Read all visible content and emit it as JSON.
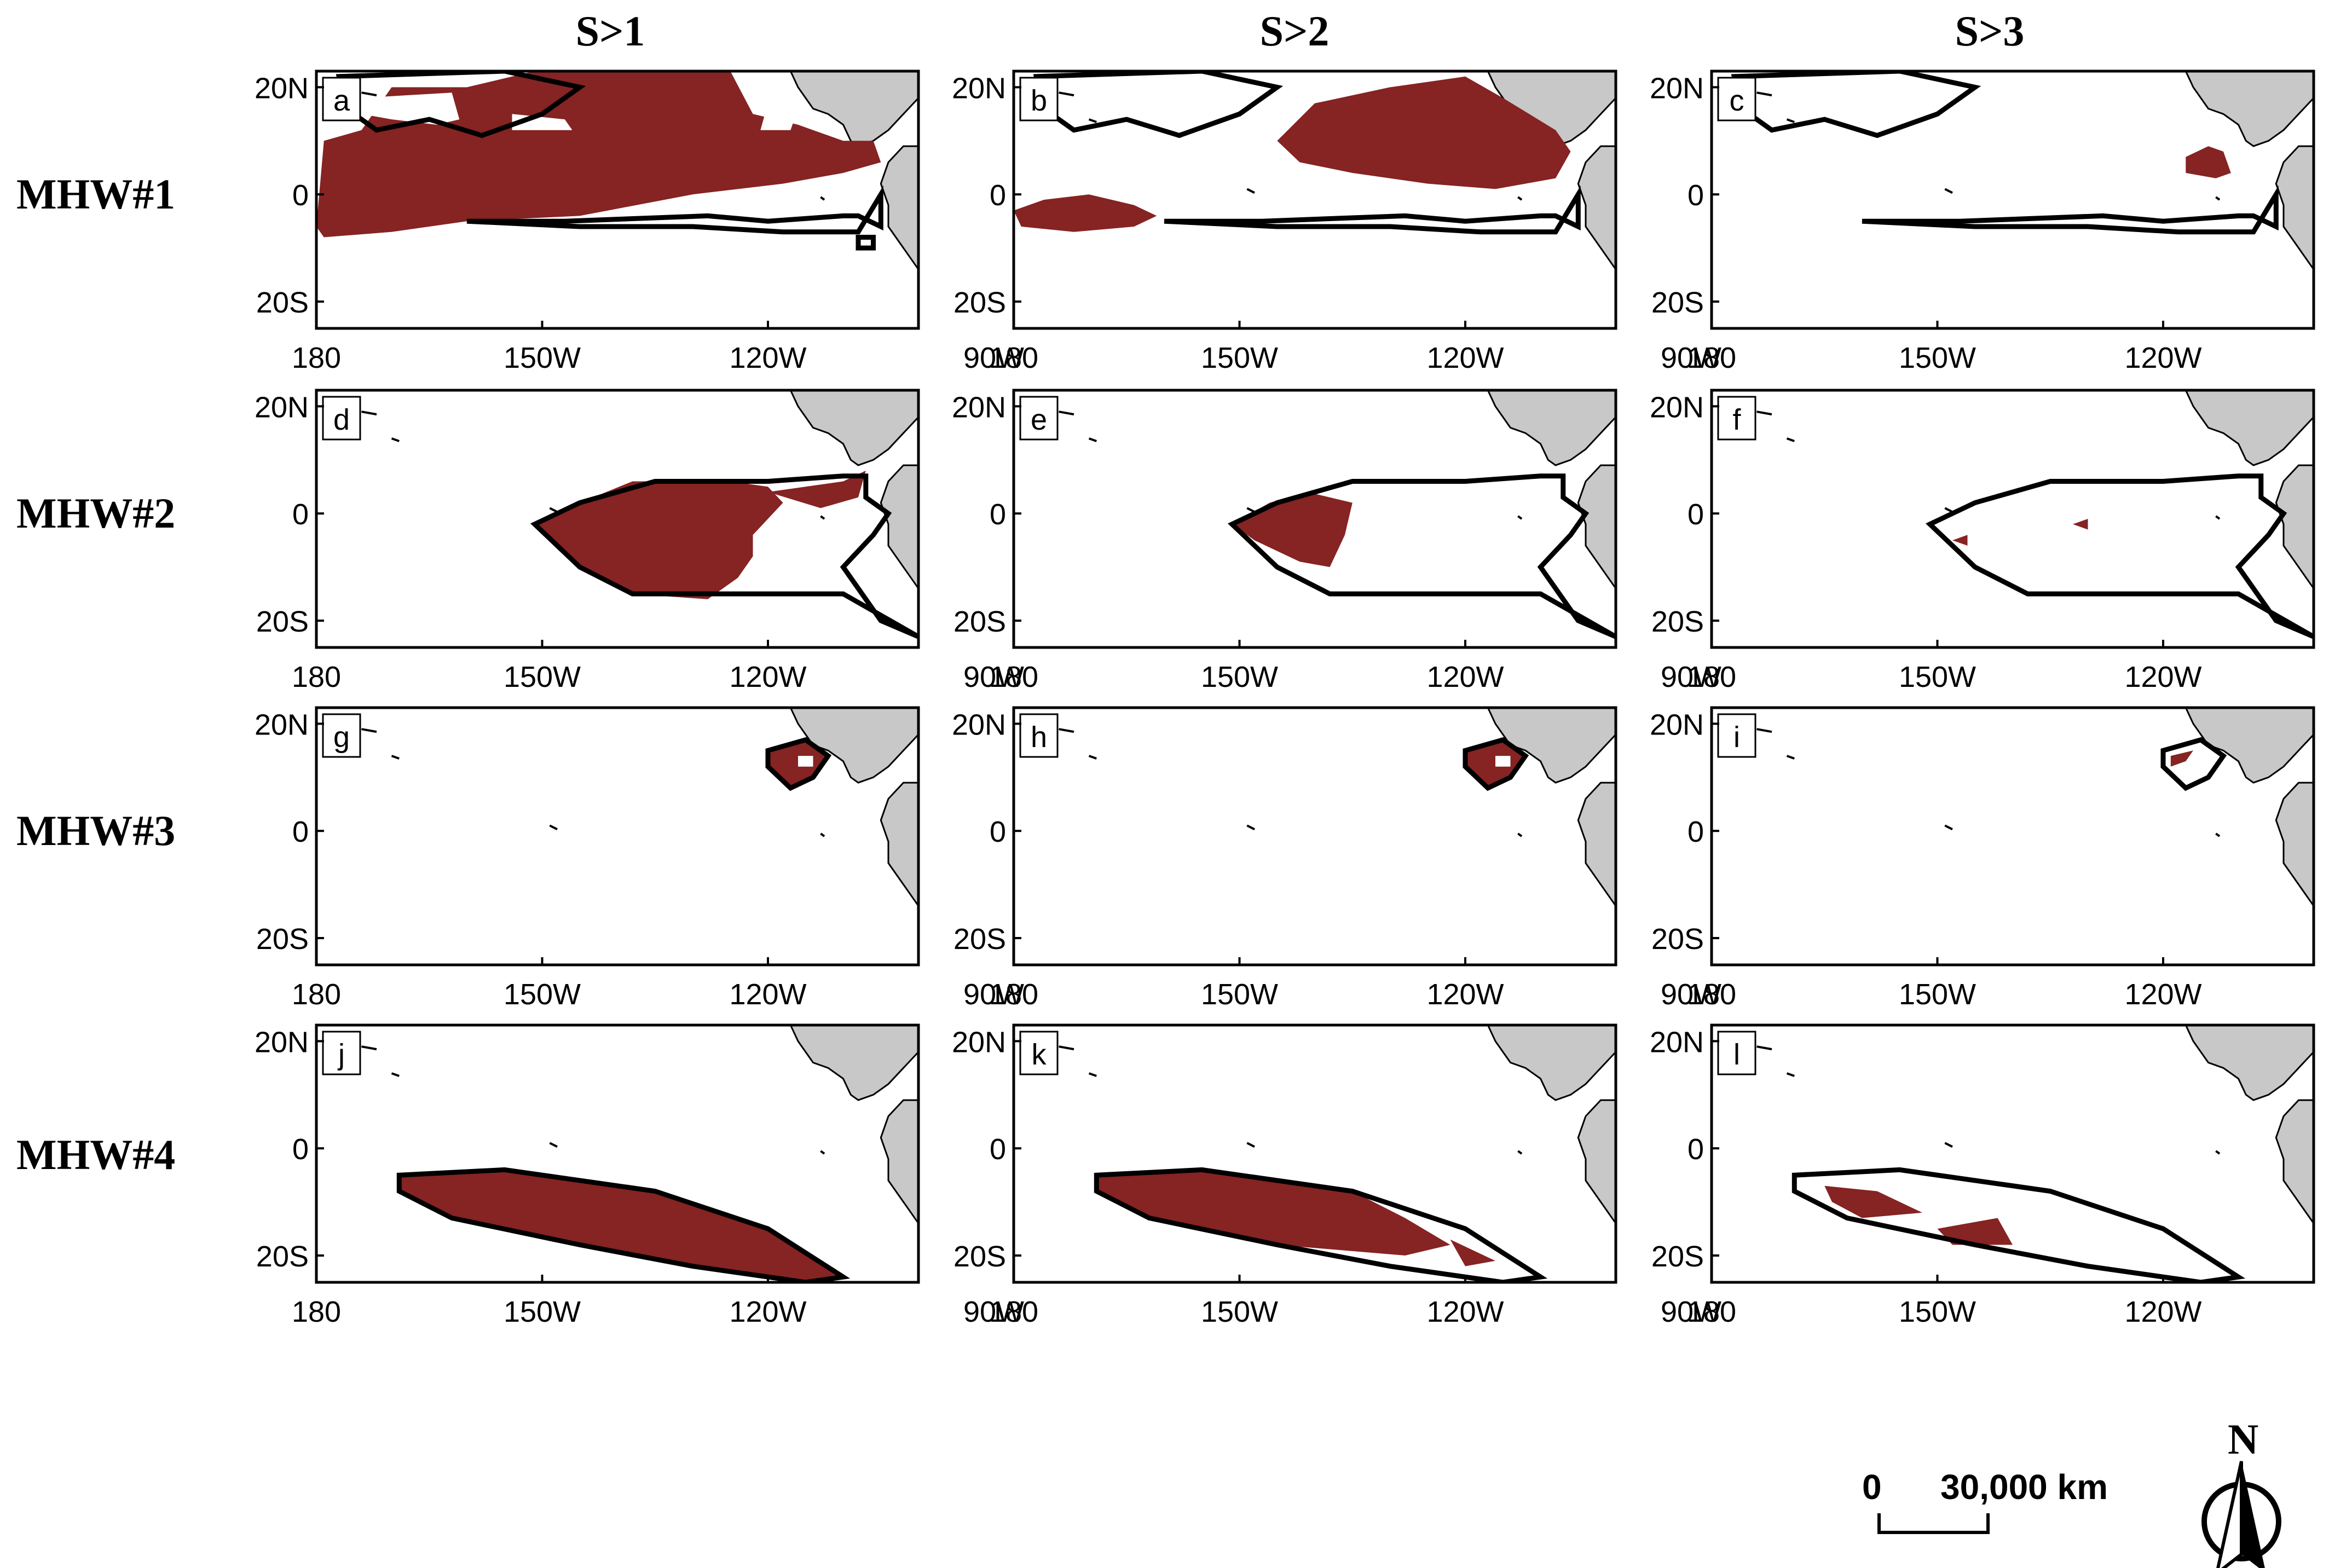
{
  "columns": [
    "S>1",
    "S>2",
    "S>3"
  ],
  "rows": [
    "MHW#1",
    "MHW#2",
    "MHW#3",
    "MHW#4"
  ],
  "panel_letters": [
    "a",
    "b",
    "c",
    "d",
    "e",
    "f",
    "g",
    "h",
    "i",
    "j",
    "k",
    "l"
  ],
  "axes": {
    "x_ticks": [
      "180",
      "150W",
      "120W",
      "90W"
    ],
    "y_ticks": [
      "20N",
      "0",
      "20S"
    ]
  },
  "scale_bar": {
    "start_label": "0",
    "end_label": "30,000 km"
  },
  "north_label": "N",
  "colors": {
    "mhw_fill": "#862323",
    "land": "#c8c8c8",
    "outline": "#000000",
    "frame": "#000000"
  }
}
